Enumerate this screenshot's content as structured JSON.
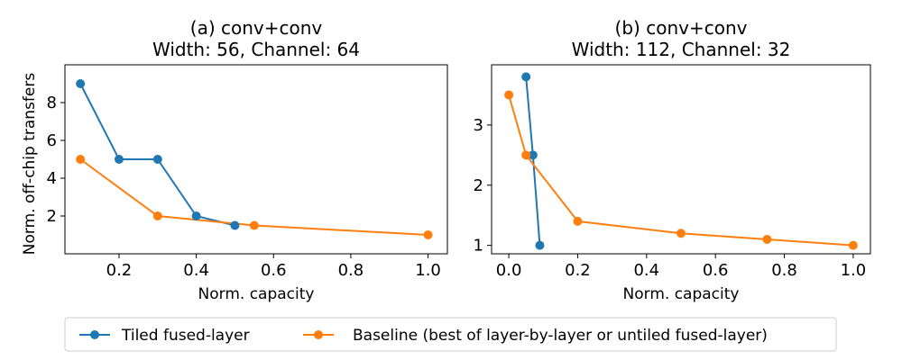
{
  "chart_data": [
    {
      "type": "line",
      "title_line1": "(a) conv+conv",
      "title_line2": "Width: 56, Channel: 64",
      "xlabel": "Norm. capacity",
      "ylabel": "Norm. off-chip transfers",
      "xlim": [
        0.06,
        1.05
      ],
      "ylim": [
        0.0,
        10.0
      ],
      "xticks": [
        0.2,
        0.4,
        0.6,
        0.8,
        1.0
      ],
      "xtick_labels": [
        "0.2",
        "0.4",
        "0.6",
        "0.8",
        "1.0"
      ],
      "yticks": [
        2,
        4,
        6,
        8
      ],
      "ytick_labels": [
        "2",
        "4",
        "6",
        "8"
      ],
      "series": [
        {
          "name": "Tiled fused-layer",
          "color": "#1f77b4",
          "x": [
            0.1,
            0.2,
            0.3,
            0.4,
            0.5
          ],
          "y": [
            9.0,
            5.0,
            5.0,
            2.0,
            1.5
          ]
        },
        {
          "name": "Baseline (best of layer-by-layer or untiled fused-layer)",
          "color": "#ff7f0e",
          "x": [
            0.1,
            0.3,
            0.55,
            1.0
          ],
          "y": [
            5.0,
            2.0,
            1.5,
            1.0
          ]
        }
      ]
    },
    {
      "type": "line",
      "title_line1": "(b) conv+conv",
      "title_line2": "Width: 112, Channel: 32",
      "xlabel": "Norm. capacity",
      "ylabel": "",
      "xlim": [
        -0.05,
        1.05
      ],
      "ylim": [
        0.86,
        4.0
      ],
      "xticks": [
        0.0,
        0.2,
        0.4,
        0.6,
        0.8,
        1.0
      ],
      "xtick_labels": [
        "0.0",
        "0.2",
        "0.4",
        "0.6",
        "0.8",
        "1.0"
      ],
      "yticks": [
        1,
        2,
        3
      ],
      "ytick_labels": [
        "1",
        "2",
        "3"
      ],
      "series": [
        {
          "name": "Tiled fused-layer",
          "color": "#1f77b4",
          "x": [
            0.05,
            0.07,
            0.09
          ],
          "y": [
            3.8,
            2.5,
            1.0
          ]
        },
        {
          "name": "Baseline (best of layer-by-layer or untiled fused-layer)",
          "color": "#ff7f0e",
          "x": [
            0.0,
            0.05,
            0.2,
            0.5,
            0.75,
            1.0
          ],
          "y": [
            3.5,
            2.5,
            1.4,
            1.2,
            1.1,
            1.0
          ]
        }
      ]
    }
  ],
  "legend": {
    "placement": "bottom-center",
    "entries": [
      {
        "label": "Tiled fused-layer",
        "color": "#1f77b4"
      },
      {
        "label": "Baseline (best of layer-by-layer or untiled fused-layer)",
        "color": "#ff7f0e"
      }
    ]
  }
}
